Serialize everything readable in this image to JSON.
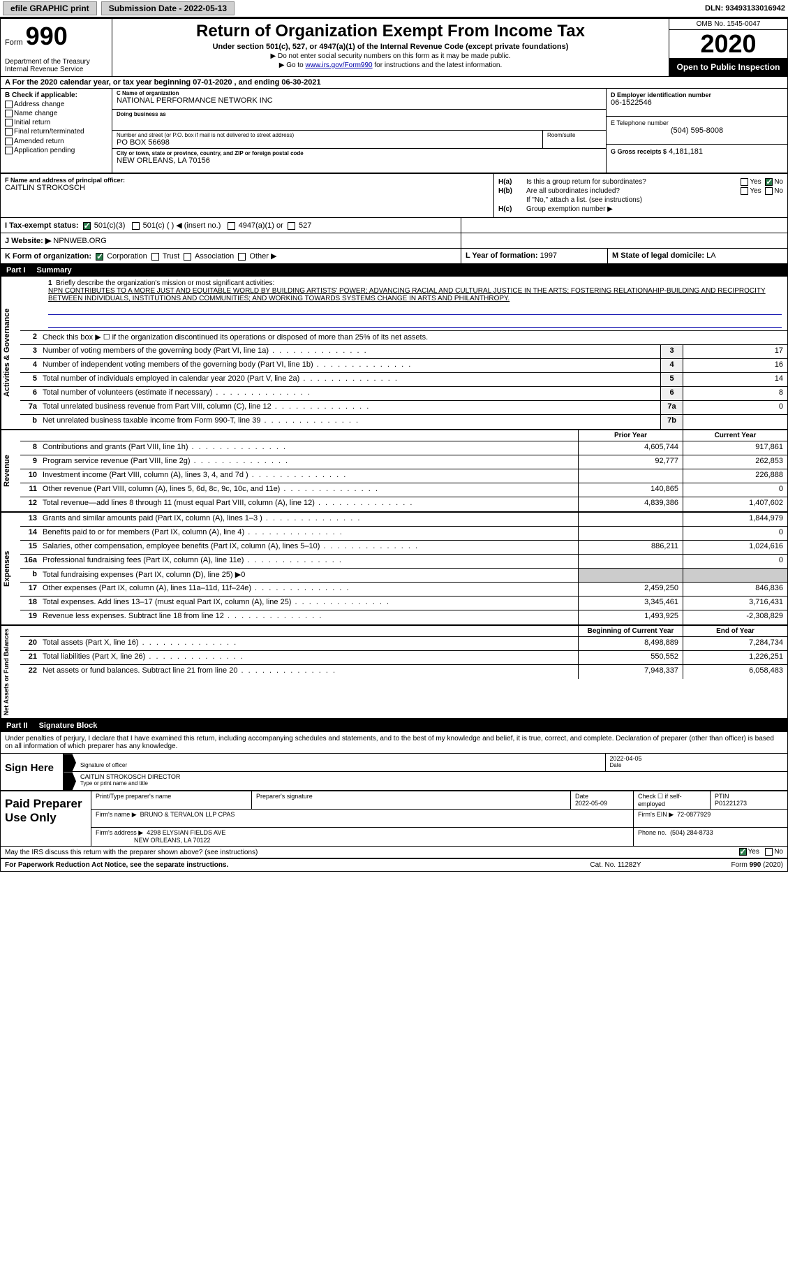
{
  "topbar": {
    "efile": "efile GRAPHIC print",
    "submission_label": "Submission Date - 2022-05-13",
    "dln_label": "DLN: 93493133016942"
  },
  "header": {
    "form_word": "Form",
    "form_num": "990",
    "dept": "Department of the Treasury\nInternal Revenue Service",
    "title": "Return of Organization Exempt From Income Tax",
    "subtitle": "Under section 501(c), 527, or 4947(a)(1) of the Internal Revenue Code (except private foundations)",
    "note1": "▶ Do not enter social security numbers on this form as it may be made public.",
    "note2_pre": "▶ Go to ",
    "note2_link": "www.irs.gov/Form990",
    "note2_post": " for instructions and the latest information.",
    "omb": "OMB No. 1545-0047",
    "year": "2020",
    "open": "Open to Public Inspection"
  },
  "period": {
    "line": "A For the 2020 calendar year, or tax year beginning 07-01-2020   , and ending 06-30-2021"
  },
  "B": {
    "hdg": "B Check if applicable:",
    "opts": [
      "Address change",
      "Name change",
      "Initial return",
      "Final return/terminated",
      "Amended return",
      "Application pending"
    ]
  },
  "C": {
    "name_lbl": "C Name of organization",
    "name": "NATIONAL PERFORMANCE NETWORK INC",
    "dba_lbl": "Doing business as",
    "dba": "",
    "street_lbl": "Number and street (or P.O. box if mail is not delivered to street address)",
    "street": "PO BOX 56698",
    "room_lbl": "Room/suite",
    "room": "",
    "city_lbl": "City or town, state or province, country, and ZIP or foreign postal code",
    "city": "NEW ORLEANS, LA  70156"
  },
  "D": {
    "lbl": "D Employer identification number",
    "val": "06-1522546"
  },
  "E": {
    "lbl": "E Telephone number",
    "val": "(504) 595-8008"
  },
  "G": {
    "lbl": "G Gross receipts $",
    "val": "4,181,181"
  },
  "F": {
    "lbl": "F  Name and address of principal officer:",
    "name": "CAITLIN STROKOSCH"
  },
  "H": {
    "a_lbl": "H(a)",
    "a_txt": "Is this a group return for subordinates?",
    "a_yes": "Yes",
    "a_no": "No",
    "b_lbl": "H(b)",
    "b_txt": "Are all subordinates included?",
    "b_note": "If \"No,\" attach a list. (see instructions)",
    "c_lbl": "H(c)",
    "c_txt": "Group exemption number ▶"
  },
  "I": {
    "lbl": "I   Tax-exempt status:",
    "o1": "501(c)(3)",
    "o2": "501(c) (  ) ◀ (insert no.)",
    "o3": "4947(a)(1) or",
    "o4": "527"
  },
  "J": {
    "lbl": "J   Website: ▶",
    "val": "NPNWEB.ORG"
  },
  "K": {
    "lbl": "K Form of organization:",
    "o1": "Corporation",
    "o2": "Trust",
    "o3": "Association",
    "o4": "Other ▶"
  },
  "L": {
    "lbl": "L Year of formation:",
    "val": "1997"
  },
  "M": {
    "lbl": "M State of legal domicile:",
    "val": "LA"
  },
  "part1": {
    "pn": "Part I",
    "title": "Summary"
  },
  "mission": {
    "num": "1",
    "lbl": "Briefly describe the organization's mission or most significant activities:",
    "text": "NPN CONTRIBUTES TO A MORE JUST AND EQUITABLE WORLD BY BUILDING ARTISTS' POWER; ADVANCING RACIAL AND CULTURAL JUSTICE IN THE ARTS; FOSTERING RELATIONAHIP-BUILDING AND RECIPROCITY BETWEEN INDIVIDUALS, INSTITUTIONS AND COMMUNITIES; AND WORKING TOWARDS SYSTEMS CHANGE IN ARTS AND PHILANTHROPY."
  },
  "gov": {
    "vlabel": "Activities & Governance",
    "r2": "Check this box ▶ ☐ if the organization discontinued its operations or disposed of more than 25% of its net assets.",
    "rows": [
      {
        "n": "3",
        "d": "Number of voting members of the governing body (Part VI, line 1a)",
        "b": "3",
        "v": "17"
      },
      {
        "n": "4",
        "d": "Number of independent voting members of the governing body (Part VI, line 1b)",
        "b": "4",
        "v": "16"
      },
      {
        "n": "5",
        "d": "Total number of individuals employed in calendar year 2020 (Part V, line 2a)",
        "b": "5",
        "v": "14"
      },
      {
        "n": "6",
        "d": "Total number of volunteers (estimate if necessary)",
        "b": "6",
        "v": "8"
      },
      {
        "n": "7a",
        "d": "Total unrelated business revenue from Part VIII, column (C), line 12",
        "b": "7a",
        "v": "0"
      },
      {
        "n": "b",
        "d": "Net unrelated business taxable income from Form 990-T, line 39",
        "b": "7b",
        "v": ""
      }
    ]
  },
  "col_hdrs": {
    "prior": "Prior Year",
    "current": "Current Year"
  },
  "rev": {
    "vlabel": "Revenue",
    "rows": [
      {
        "n": "8",
        "d": "Contributions and grants (Part VIII, line 1h)",
        "p": "4,605,744",
        "c": "917,861"
      },
      {
        "n": "9",
        "d": "Program service revenue (Part VIII, line 2g)",
        "p": "92,777",
        "c": "262,853"
      },
      {
        "n": "10",
        "d": "Investment income (Part VIII, column (A), lines 3, 4, and 7d )",
        "p": "",
        "c": "226,888"
      },
      {
        "n": "11",
        "d": "Other revenue (Part VIII, column (A), lines 5, 6d, 8c, 9c, 10c, and 11e)",
        "p": "140,865",
        "c": "0"
      },
      {
        "n": "12",
        "d": "Total revenue—add lines 8 through 11 (must equal Part VIII, column (A), line 12)",
        "p": "4,839,386",
        "c": "1,407,602"
      }
    ]
  },
  "exp": {
    "vlabel": "Expenses",
    "rows": [
      {
        "n": "13",
        "d": "Grants and similar amounts paid (Part IX, column (A), lines 1–3 )",
        "p": "",
        "c": "1,844,979"
      },
      {
        "n": "14",
        "d": "Benefits paid to or for members (Part IX, column (A), line 4)",
        "p": "",
        "c": "0"
      },
      {
        "n": "15",
        "d": "Salaries, other compensation, employee benefits (Part IX, column (A), lines 5–10)",
        "p": "886,211",
        "c": "1,024,616"
      },
      {
        "n": "16a",
        "d": "Professional fundraising fees (Part IX, column (A), line 11e)",
        "p": "",
        "c": "0"
      },
      {
        "n": "b",
        "d": "Total fundraising expenses (Part IX, column (D), line 25) ▶0",
        "p": "—",
        "c": "—"
      },
      {
        "n": "17",
        "d": "Other expenses (Part IX, column (A), lines 11a–11d, 11f–24e)",
        "p": "2,459,250",
        "c": "846,836"
      },
      {
        "n": "18",
        "d": "Total expenses. Add lines 13–17 (must equal Part IX, column (A), line 25)",
        "p": "3,345,461",
        "c": "3,716,431"
      },
      {
        "n": "19",
        "d": "Revenue less expenses. Subtract line 18 from line 12",
        "p": "1,493,925",
        "c": "-2,308,829"
      }
    ]
  },
  "na_hdrs": {
    "begin": "Beginning of Current Year",
    "end": "End of Year"
  },
  "na": {
    "vlabel": "Net Assets or Fund Balances",
    "rows": [
      {
        "n": "20",
        "d": "Total assets (Part X, line 16)",
        "p": "8,498,889",
        "c": "7,284,734"
      },
      {
        "n": "21",
        "d": "Total liabilities (Part X, line 26)",
        "p": "550,552",
        "c": "1,226,251"
      },
      {
        "n": "22",
        "d": "Net assets or fund balances. Subtract line 21 from line 20",
        "p": "7,948,337",
        "c": "6,058,483"
      }
    ]
  },
  "part2": {
    "pn": "Part II",
    "title": "Signature Block"
  },
  "sig": {
    "intro": "Under penalties of perjury, I declare that I have examined this return, including accompanying schedules and statements, and to the best of my knowledge and belief, it is true, correct, and complete. Declaration of preparer (other than officer) is based on all information of which preparer has any knowledge.",
    "sign_here": "Sign Here",
    "sig_officer": "Signature of officer",
    "date": "2022-04-05",
    "date_lbl": "Date",
    "name": "CAITLIN STROKOSCH  DIRECTOR",
    "name_lbl": "Type or print name and title"
  },
  "prep": {
    "lbl": "Paid Preparer Use Only",
    "r1": {
      "c1": "Print/Type preparer's name",
      "c2": "Preparer's signature",
      "c3_lbl": "Date",
      "c3": "2022-05-09",
      "c4": "Check ☐ if self-employed",
      "c5_lbl": "PTIN",
      "c5": "P01221273"
    },
    "r2": {
      "c1_lbl": "Firm's name   ▶",
      "c1": "BRUNO & TERVALON LLP CPAS",
      "c2_lbl": "Firm's EIN ▶",
      "c2": "72-0877929"
    },
    "r3": {
      "c1_lbl": "Firm's address ▶",
      "c1a": "4298 ELYSIAN FIELDS AVE",
      "c1b": "NEW ORLEANS, LA  70122",
      "c2_lbl": "Phone no.",
      "c2": "(504) 284-8733"
    }
  },
  "discuss": {
    "txt": "May the IRS discuss this return with the preparer shown above? (see instructions)",
    "yes": "Yes",
    "no": "No"
  },
  "footer": {
    "pra": "For Paperwork Reduction Act Notice, see the separate instructions.",
    "cat": "Cat. No. 11282Y",
    "form": "Form 990 (2020)"
  },
  "colors": {
    "link": "#0000aa",
    "checked": "#2a7a4a"
  }
}
